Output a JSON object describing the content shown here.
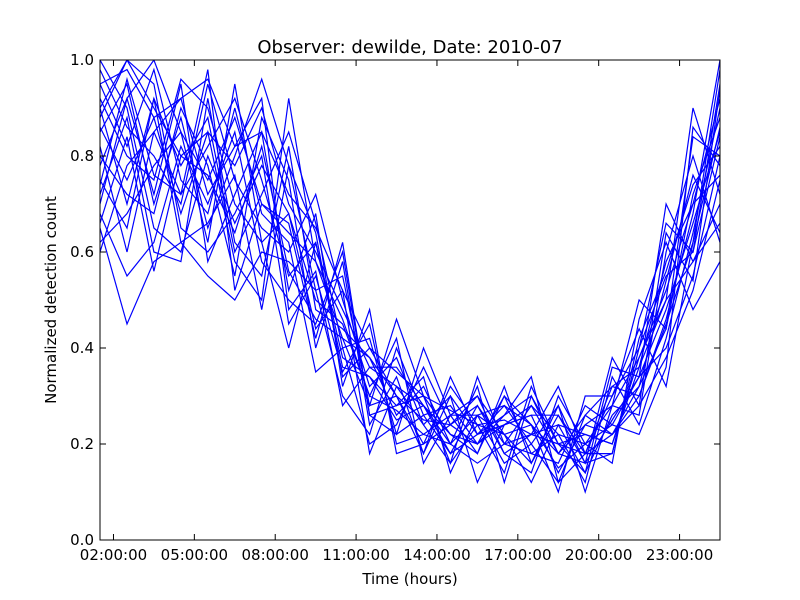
{
  "chart_data": {
    "type": "line",
    "title": "Observer: dewilde, Date: 2010-07",
    "xlabel": "Time (hours)",
    "ylabel": "Normalized detection count",
    "xlim": [
      1.5,
      24.5
    ],
    "ylim": [
      0.0,
      1.0
    ],
    "x_ticks": [
      {
        "value": 2,
        "label": "02:00:00"
      },
      {
        "value": 5,
        "label": "05:00:00"
      },
      {
        "value": 8,
        "label": "08:00:00"
      },
      {
        "value": 11,
        "label": "11:00:00"
      },
      {
        "value": 14,
        "label": "14:00:00"
      },
      {
        "value": 17,
        "label": "17:00:00"
      },
      {
        "value": 20,
        "label": "20:00:00"
      },
      {
        "value": 23,
        "label": "23:00:00"
      }
    ],
    "y_ticks": [
      {
        "value": 0.0,
        "label": "0.0"
      },
      {
        "value": 0.2,
        "label": "0.2"
      },
      {
        "value": 0.4,
        "label": "0.4"
      },
      {
        "value": 0.6,
        "label": "0.6"
      },
      {
        "value": 0.8,
        "label": "0.8"
      },
      {
        "value": 1.0,
        "label": "1.0"
      }
    ],
    "grid": false,
    "legend": "none",
    "line_color": "#0000ff",
    "x": [
      1.5,
      2.5,
      3.5,
      4.5,
      5.5,
      6.5,
      7.5,
      8.5,
      9.5,
      10.5,
      11.5,
      12.5,
      13.5,
      14.5,
      15.5,
      16.5,
      17.5,
      18.5,
      19.5,
      20.5,
      21.5,
      22.5,
      23.5,
      24.5
    ],
    "series": [
      {
        "values": [
          0.95,
          0.98,
          0.88,
          0.92,
          0.96,
          0.82,
          0.85,
          0.72,
          0.65,
          0.52,
          0.4,
          0.35,
          0.3,
          0.27,
          0.24,
          0.25,
          0.22,
          0.2,
          0.18,
          0.22,
          0.3,
          0.45,
          0.62,
          0.98
        ]
      },
      {
        "values": [
          0.88,
          1.0,
          0.9,
          0.8,
          0.85,
          0.78,
          0.9,
          0.7,
          0.6,
          0.48,
          0.36,
          0.32,
          0.28,
          0.22,
          0.2,
          0.24,
          0.28,
          0.18,
          0.16,
          0.25,
          0.34,
          0.4,
          0.55,
          0.8
        ]
      },
      {
        "values": [
          0.7,
          0.92,
          1.0,
          0.85,
          0.75,
          0.88,
          0.7,
          0.64,
          0.58,
          0.42,
          0.38,
          0.3,
          0.25,
          0.24,
          0.28,
          0.2,
          0.18,
          0.22,
          0.2,
          0.28,
          0.38,
          0.52,
          0.7,
          0.92
        ]
      },
      {
        "values": [
          0.92,
          0.8,
          0.75,
          0.96,
          0.9,
          0.7,
          0.62,
          0.68,
          0.5,
          0.45,
          0.3,
          0.27,
          0.22,
          0.2,
          0.26,
          0.22,
          0.24,
          0.15,
          0.2,
          0.24,
          0.34,
          0.48,
          0.66,
          0.85
        ]
      },
      {
        "values": [
          0.6,
          0.78,
          0.85,
          0.72,
          0.82,
          0.92,
          0.75,
          0.55,
          0.62,
          0.38,
          0.34,
          0.25,
          0.28,
          0.18,
          0.22,
          0.28,
          0.2,
          0.12,
          0.18,
          0.3,
          0.4,
          0.55,
          0.6,
          0.95
        ]
      },
      {
        "values": [
          0.85,
          0.95,
          0.7,
          0.88,
          0.65,
          0.8,
          0.96,
          0.78,
          0.52,
          0.55,
          0.28,
          0.3,
          0.2,
          0.24,
          0.3,
          0.18,
          0.22,
          0.24,
          0.14,
          0.26,
          0.32,
          0.44,
          0.72,
          0.88
        ]
      },
      {
        "values": [
          0.75,
          0.65,
          0.92,
          0.78,
          0.88,
          0.6,
          0.72,
          0.85,
          0.66,
          0.4,
          0.42,
          0.22,
          0.26,
          0.28,
          0.2,
          0.26,
          0.3,
          0.2,
          0.22,
          0.2,
          0.36,
          0.5,
          0.58,
          0.7
        ]
      },
      {
        "values": [
          0.98,
          0.86,
          0.8,
          0.7,
          0.95,
          0.75,
          0.65,
          0.6,
          0.72,
          0.5,
          0.32,
          0.38,
          0.24,
          0.16,
          0.24,
          0.22,
          0.16,
          0.26,
          0.18,
          0.32,
          0.3,
          0.46,
          0.68,
          1.0
        ]
      },
      {
        "values": [
          0.68,
          0.55,
          0.62,
          0.82,
          0.7,
          0.85,
          0.58,
          0.5,
          0.45,
          0.6,
          0.26,
          0.28,
          0.3,
          0.22,
          0.18,
          0.3,
          0.24,
          0.18,
          0.26,
          0.22,
          0.28,
          0.38,
          0.52,
          0.75
        ]
      },
      {
        "values": [
          0.9,
          1.0,
          0.95,
          0.65,
          0.6,
          0.68,
          0.8,
          0.45,
          0.55,
          0.35,
          0.45,
          0.2,
          0.22,
          0.26,
          0.26,
          0.16,
          0.2,
          0.28,
          0.16,
          0.18,
          0.42,
          0.56,
          0.74,
          0.82
        ]
      },
      {
        "values": [
          0.8,
          0.72,
          0.68,
          0.9,
          0.78,
          0.55,
          0.88,
          0.75,
          0.4,
          0.58,
          0.24,
          0.34,
          0.18,
          0.3,
          0.22,
          0.24,
          0.26,
          0.14,
          0.24,
          0.28,
          0.26,
          0.6,
          0.8,
          0.62
        ]
      },
      {
        "values": [
          0.72,
          0.88,
          0.6,
          0.58,
          0.92,
          0.62,
          0.55,
          0.82,
          0.48,
          0.44,
          0.38,
          0.26,
          0.32,
          0.2,
          0.16,
          0.2,
          0.28,
          0.22,
          0.12,
          0.34,
          0.24,
          0.42,
          0.64,
          0.9
        ]
      },
      {
        "values": [
          0.65,
          0.45,
          0.58,
          0.62,
          0.55,
          0.5,
          0.6,
          0.58,
          0.52,
          0.3,
          0.22,
          0.4,
          0.26,
          0.18,
          0.28,
          0.18,
          0.14,
          0.3,
          0.2,
          0.16,
          0.46,
          0.62,
          0.48,
          0.58
        ]
      },
      {
        "values": [
          0.95,
          0.82,
          0.98,
          0.75,
          0.68,
          0.9,
          0.68,
          0.62,
          0.35,
          0.4,
          0.2,
          0.24,
          0.36,
          0.24,
          0.2,
          0.3,
          0.18,
          0.16,
          0.28,
          0.24,
          0.22,
          0.36,
          0.86,
          0.78
        ]
      },
      {
        "values": [
          0.78,
          0.92,
          0.72,
          0.95,
          0.58,
          0.72,
          0.85,
          0.52,
          0.68,
          0.32,
          0.48,
          0.18,
          0.2,
          0.32,
          0.24,
          0.14,
          0.32,
          0.2,
          0.14,
          0.36,
          0.34,
          0.7,
          0.58,
          0.66
        ]
      },
      {
        "values": [
          0.86,
          0.75,
          0.88,
          0.68,
          0.85,
          0.58,
          0.5,
          0.92,
          0.58,
          0.46,
          0.3,
          0.42,
          0.16,
          0.26,
          0.3,
          0.22,
          0.12,
          0.24,
          0.22,
          0.2,
          0.38,
          0.5,
          0.9,
          0.72
        ]
      },
      {
        "values": [
          0.62,
          0.68,
          0.78,
          0.85,
          0.62,
          0.95,
          0.62,
          0.4,
          0.62,
          0.36,
          0.34,
          0.28,
          0.34,
          0.14,
          0.26,
          0.28,
          0.24,
          0.1,
          0.3,
          0.3,
          0.44,
          0.32,
          0.62,
          0.86
        ]
      },
      {
        "values": [
          1.0,
          0.9,
          0.65,
          0.6,
          0.8,
          0.66,
          0.78,
          0.68,
          0.44,
          0.52,
          0.18,
          0.32,
          0.24,
          0.3,
          0.12,
          0.24,
          0.26,
          0.26,
          0.16,
          0.38,
          0.28,
          0.64,
          0.54,
          0.94
        ]
      },
      {
        "values": [
          0.82,
          0.6,
          0.85,
          0.92,
          0.72,
          0.82,
          0.92,
          0.48,
          0.56,
          0.28,
          0.36,
          0.36,
          0.28,
          0.2,
          0.32,
          0.12,
          0.3,
          0.18,
          0.24,
          0.22,
          0.32,
          0.54,
          0.76,
          0.64
        ]
      },
      {
        "values": [
          0.74,
          0.96,
          0.76,
          0.72,
          0.98,
          0.52,
          0.7,
          0.66,
          0.42,
          0.62,
          0.26,
          0.22,
          0.4,
          0.26,
          0.18,
          0.32,
          0.16,
          0.28,
          0.1,
          0.28,
          0.5,
          0.44,
          0.84,
          0.8
        ]
      },
      {
        "values": [
          0.9,
          0.7,
          0.92,
          0.62,
          0.66,
          0.76,
          0.48,
          0.78,
          0.64,
          0.34,
          0.4,
          0.3,
          0.18,
          0.34,
          0.22,
          0.26,
          0.34,
          0.12,
          0.26,
          0.32,
          0.36,
          0.58,
          0.7,
          0.76
        ]
      },
      {
        "values": [
          0.66,
          0.84,
          0.56,
          0.8,
          0.76,
          0.64,
          0.82,
          0.56,
          0.46,
          0.42,
          0.28,
          0.46,
          0.3,
          0.16,
          0.34,
          0.2,
          0.22,
          0.32,
          0.18,
          0.18,
          0.4,
          0.66,
          0.6,
          0.84
        ]
      }
    ]
  }
}
